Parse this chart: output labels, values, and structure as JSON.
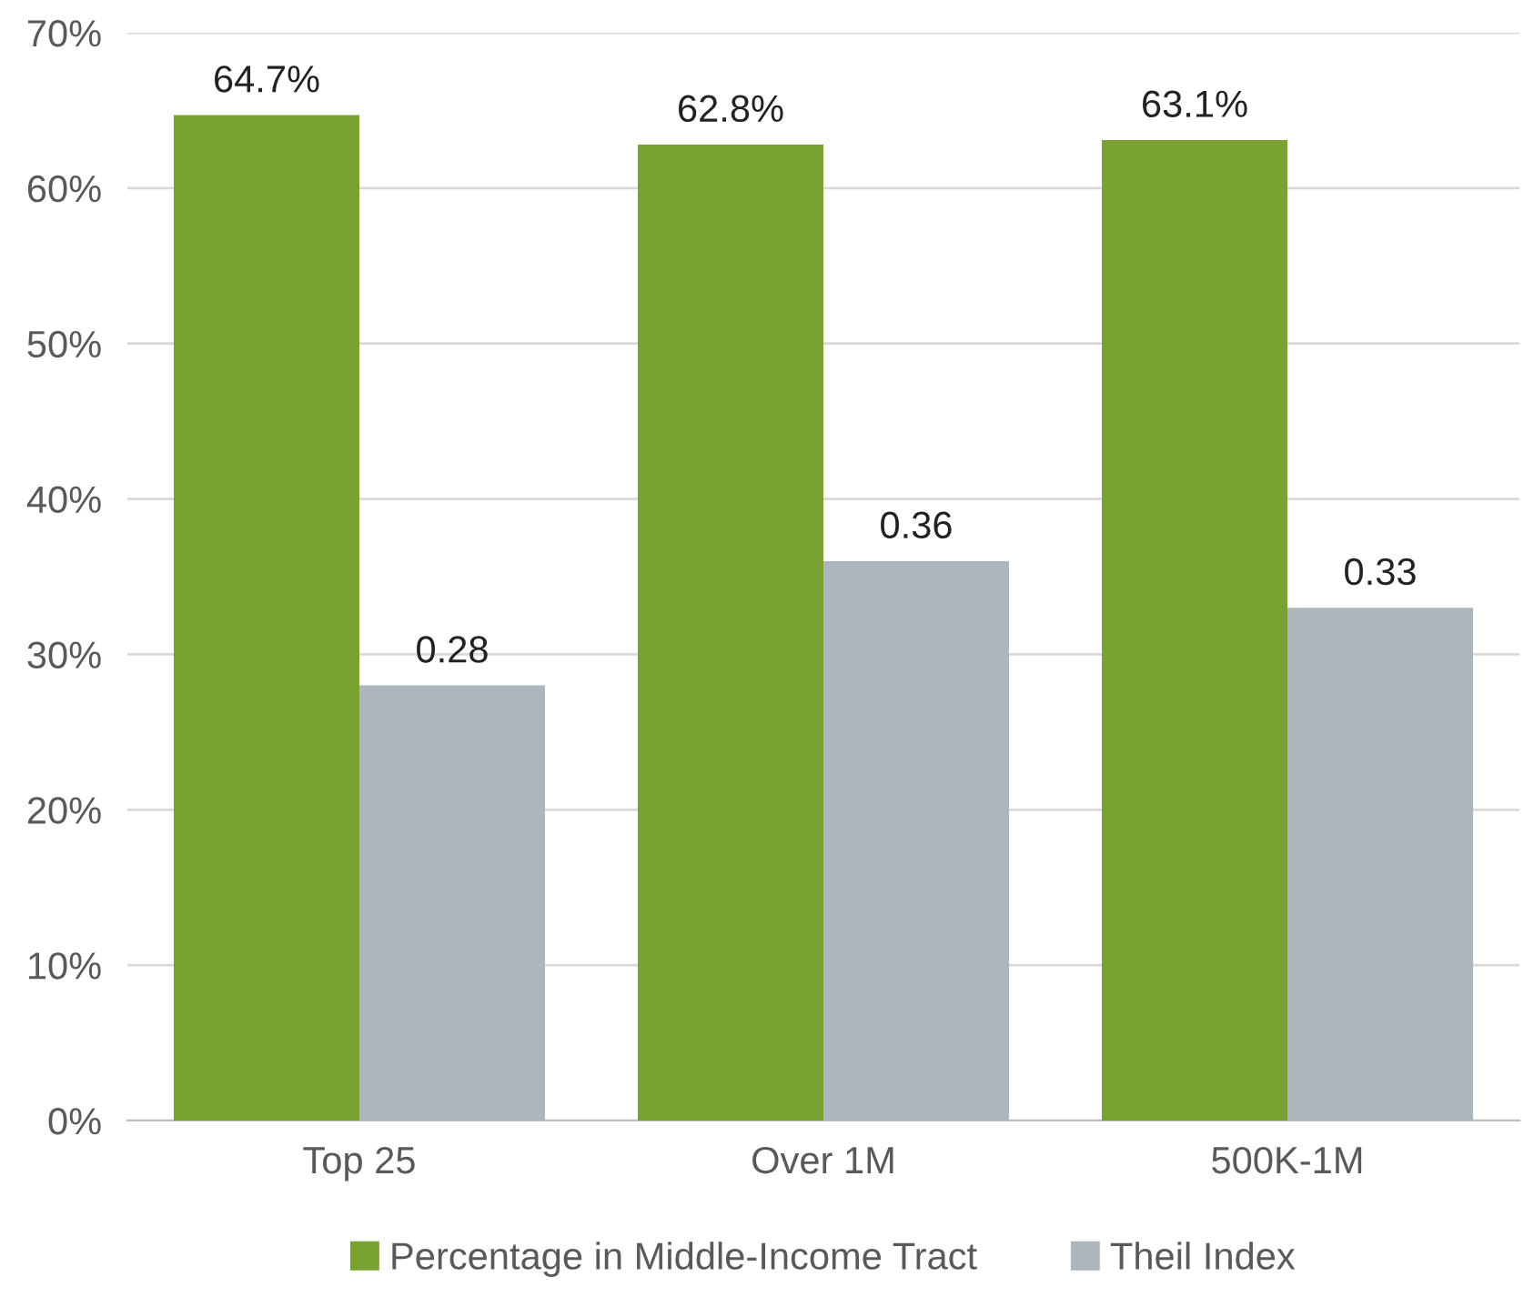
{
  "chart_data": {
    "type": "bar",
    "categories": [
      "Top 25",
      "Over 1M",
      "500K-1M"
    ],
    "series": [
      {
        "name": "Percentage in Middle-Income Tract",
        "color": "#7aa232",
        "values": [
          64.7,
          62.8,
          63.1
        ],
        "value_labels": [
          "64.7%",
          "62.8%",
          "63.1%"
        ]
      },
      {
        "name": "Theil Index",
        "color": "#adb5bd",
        "axis": "y2",
        "values": [
          0.28,
          0.36,
          0.33
        ],
        "value_labels": [
          "0.28",
          "0.36",
          "0.33"
        ]
      }
    ],
    "ylim": [
      0,
      70
    ],
    "yticks": [
      {
        "value": 0,
        "label": "0%"
      },
      {
        "value": 10,
        "label": "10%"
      },
      {
        "value": 20,
        "label": "20%"
      },
      {
        "value": 30,
        "label": "30%"
      },
      {
        "value": 40,
        "label": "40%"
      },
      {
        "value": 50,
        "label": "50%"
      },
      {
        "value": 60,
        "label": "60%"
      },
      {
        "value": 70,
        "label": "70%"
      }
    ],
    "y2lim": [
      0,
      0.7
    ],
    "grid": "y",
    "legend": "bottom"
  }
}
